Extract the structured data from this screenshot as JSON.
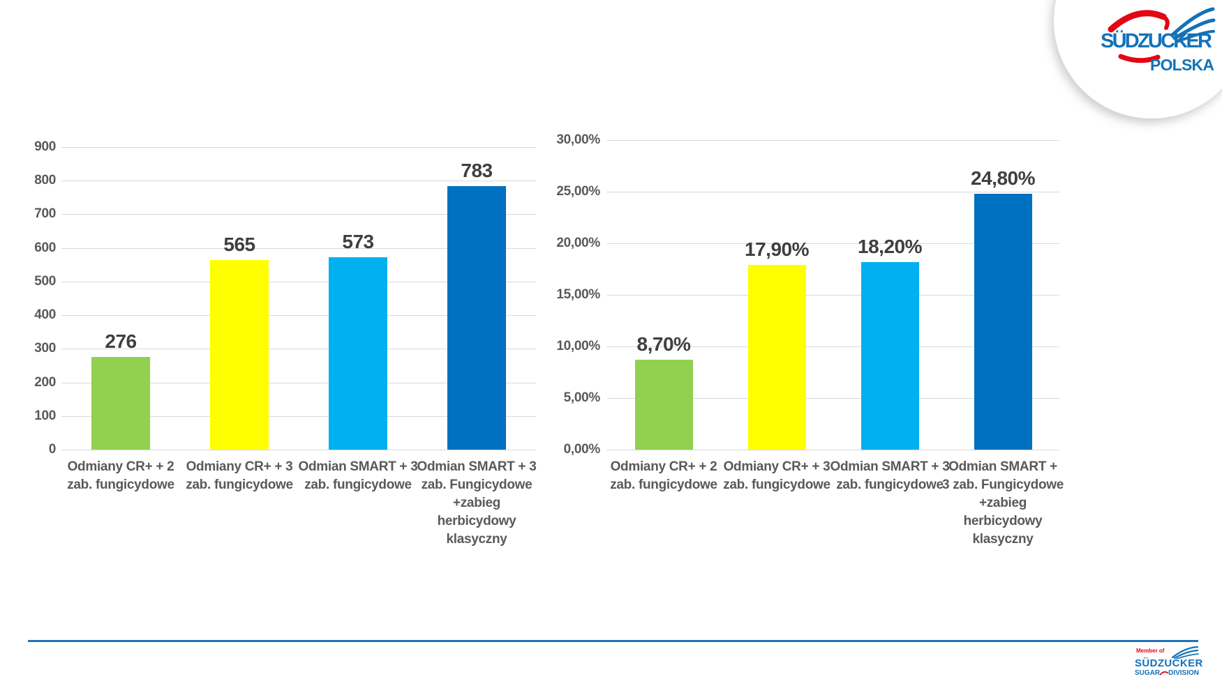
{
  "header_logo": {
    "name": "Südzucker Polska logo",
    "line1": "SÜDZUCKER",
    "line2": "POLSKA",
    "brand_blue": "#1272B9",
    "brand_red": "#E30613"
  },
  "footer": {
    "divider_color": "#1F72B8",
    "logo": {
      "member_of": "Member of",
      "brand": "SÜDZUCKER",
      "division_left": "SUGAR",
      "division_right": "DIVISION"
    }
  },
  "chart_data": [
    {
      "type": "bar",
      "title": "",
      "xlabel": "",
      "ylabel": "",
      "grid": true,
      "legend": null,
      "categories": [
        "Odmiany CR+ + 2\nzab. fungicydowe",
        "Odmiany CR+ + 3\nzab. fungicydowe",
        "Odmian SMART + 3\nzab. fungicydowe",
        "Odmian SMART + 3\nzab. Fungicydowe\n+zabieg\nherbicydowy\nklasyczny"
      ],
      "values": [
        276,
        565,
        573,
        783
      ],
      "value_labels": [
        "276",
        "565",
        "573",
        "783"
      ],
      "bar_colors": [
        "#92D050",
        "#FFFF00",
        "#00B0F0",
        "#0070C0"
      ],
      "ylim": [
        0,
        900
      ],
      "ytick_step": 100,
      "ytick_labels": [
        "0",
        "100",
        "200",
        "300",
        "400",
        "500",
        "600",
        "700",
        "800",
        "900"
      ]
    },
    {
      "type": "bar",
      "title": "",
      "xlabel": "",
      "ylabel": "",
      "grid": true,
      "legend": null,
      "categories": [
        "Odmiany CR+ + 2\nzab. fungicydowe",
        "Odmiany CR+ + 3\nzab. fungicydowe",
        "Odmian SMART + 3\nzab. fungicydowe",
        "Odmian SMART +\n3 zab. Fungicydowe\n+zabieg\nherbicydowy\nklasyczny"
      ],
      "values": [
        8.7,
        17.9,
        18.2,
        24.8
      ],
      "value_labels": [
        "8,70%",
        "17,90%",
        "18,20%",
        "24,80%"
      ],
      "bar_colors": [
        "#92D050",
        "#FFFF00",
        "#00B0F0",
        "#0070C0"
      ],
      "ylim": [
        0,
        30
      ],
      "ytick_step": 5,
      "ytick_labels": [
        "0,00%",
        "5,00%",
        "10,00%",
        "15,00%",
        "20,00%",
        "25,00%",
        "30,00%"
      ]
    }
  ]
}
